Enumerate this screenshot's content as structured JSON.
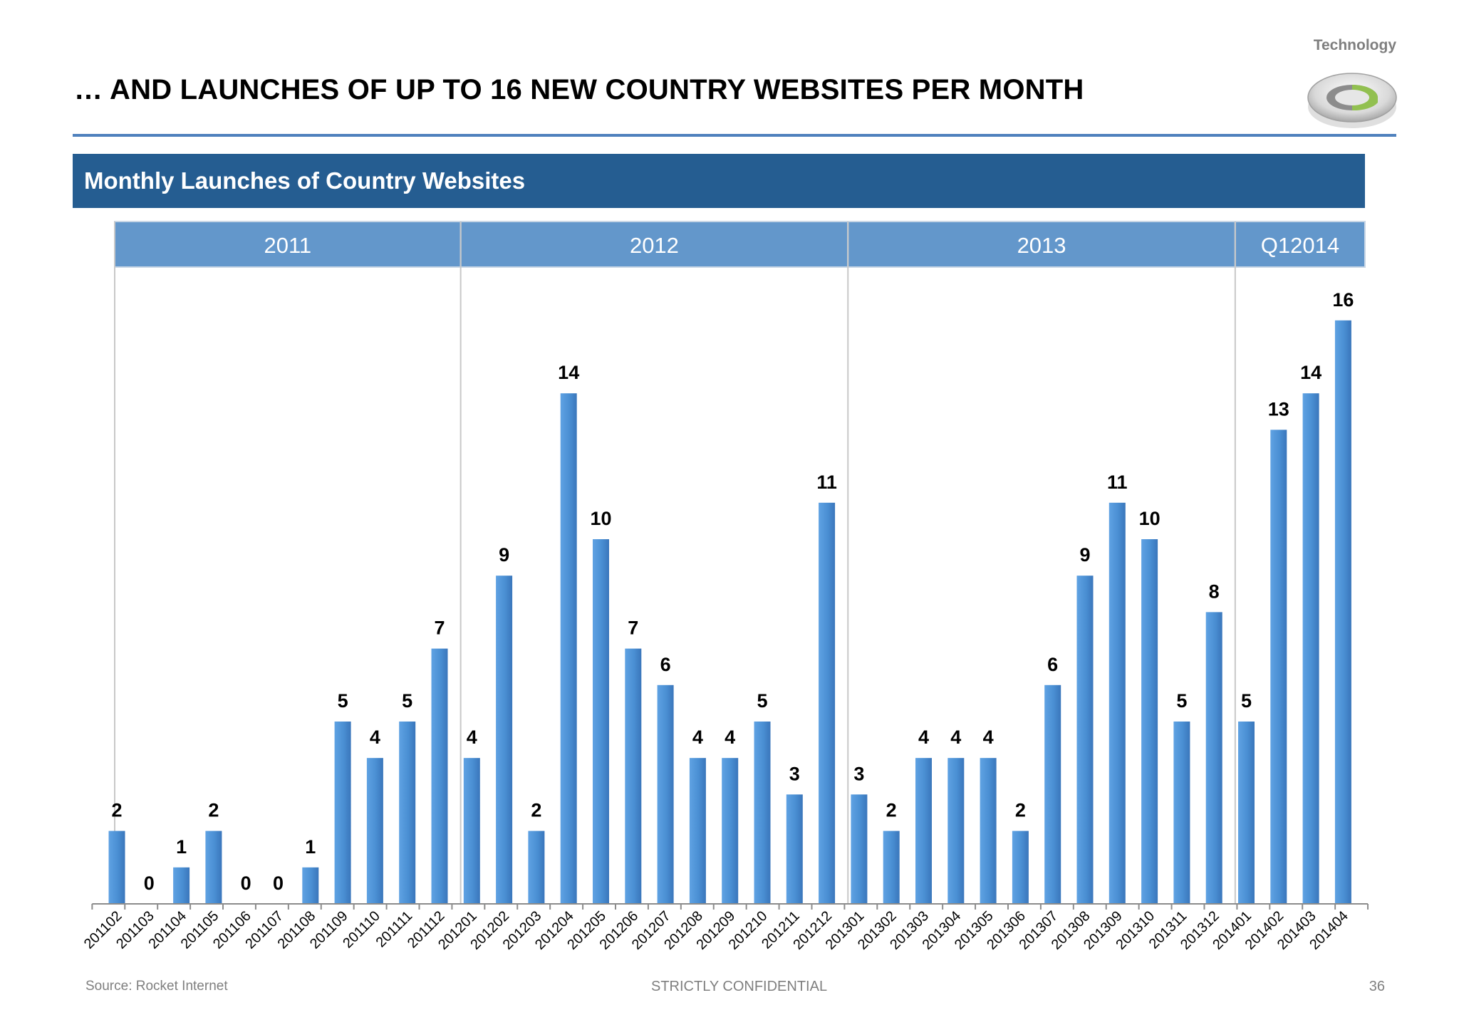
{
  "header": {
    "corner_label": "Technology",
    "title": "… AND LAUNCHES OF UP TO 16 NEW COUNTRY WEBSITES PER MONTH",
    "section_title": "Monthly Launches of Country Websites"
  },
  "footer": {
    "source": "Source: Rocket Internet",
    "confidential": "STRICTLY CONFIDENTIAL",
    "page_number": "36"
  },
  "colors": {
    "bar": "#4a8fd3",
    "bar_dark": "#3f7abf",
    "section_bar": "#255d91",
    "year_band": "#6397cb",
    "rule": "#4f81bd"
  },
  "chart_data": {
    "type": "bar",
    "title": "Monthly Launches of Country Websites",
    "xlabel": "",
    "ylabel": "",
    "ylim": [
      0,
      16
    ],
    "grid": false,
    "legend": "none",
    "year_groups": [
      {
        "label": "2011",
        "start": "201102",
        "end": "201112"
      },
      {
        "label": "2012",
        "start": "201201",
        "end": "201212"
      },
      {
        "label": "2013",
        "start": "201301",
        "end": "201312"
      },
      {
        "label": "Q12014",
        "start": "201401",
        "end": "201404"
      }
    ],
    "categories": [
      "201102",
      "201103",
      "201104",
      "201105",
      "201106",
      "201107",
      "201108",
      "201109",
      "201110",
      "201111",
      "201112",
      "201201",
      "201202",
      "201203",
      "201204",
      "201205",
      "201206",
      "201207",
      "201208",
      "201209",
      "201210",
      "201211",
      "201212",
      "201301",
      "201302",
      "201303",
      "201304",
      "201305",
      "201306",
      "201307",
      "201308",
      "201309",
      "201310",
      "201311",
      "201312",
      "201401",
      "201402",
      "201403",
      "201404"
    ],
    "values": [
      2,
      0,
      1,
      2,
      0,
      0,
      1,
      5,
      4,
      5,
      7,
      4,
      9,
      2,
      14,
      10,
      7,
      6,
      4,
      4,
      5,
      3,
      11,
      3,
      2,
      4,
      4,
      4,
      2,
      6,
      9,
      11,
      10,
      5,
      8,
      5,
      13,
      14,
      16
    ]
  }
}
